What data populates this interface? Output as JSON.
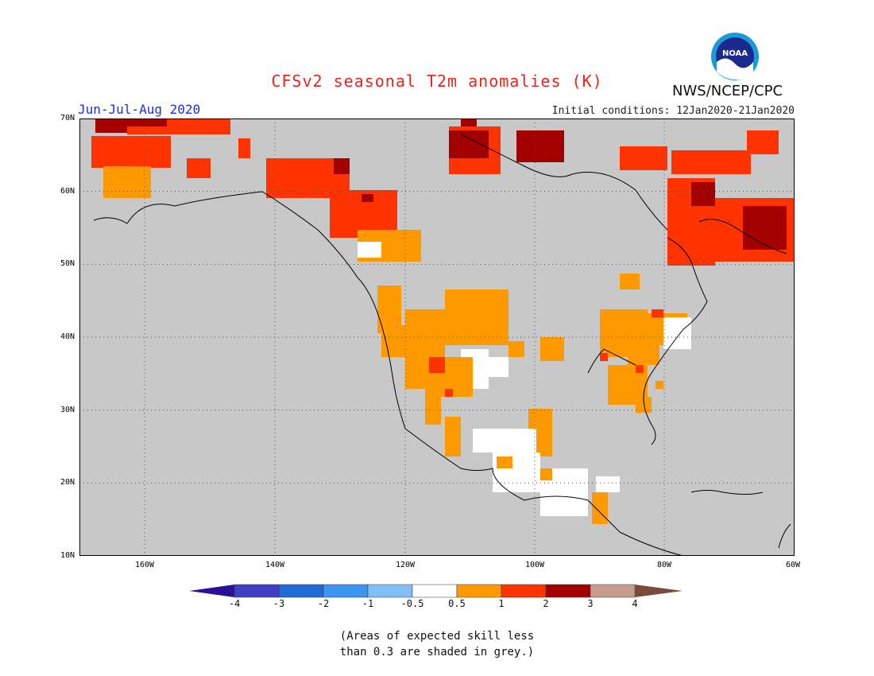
{
  "title": "CFSv2 seasonal T2m anomalies (K)",
  "season": "Jun-Jul-Aug 2020",
  "initial_conditions": "Initial conditions: 12Jan2020-21Jan2020",
  "agency": "NWS/NCEP/CPC",
  "logo_text": "NOAA",
  "lat_labels": [
    "70N",
    "60N",
    "50N",
    "40N",
    "30N",
    "20N",
    "10N"
  ],
  "lon_labels": [
    "160W",
    "140W",
    "120W",
    "100W",
    "80W",
    "60W"
  ],
  "colorbar": {
    "labels": [
      "-4",
      "-3",
      "-2",
      "-1",
      "-0.5",
      "0.5",
      "1",
      "2",
      "3",
      "4"
    ],
    "colors": [
      "#2b0f99",
      "#3f3fc6",
      "#1e6ad6",
      "#3c96f0",
      "#82bff5",
      "#ffffff",
      "#ff9900",
      "#ff3300",
      "#a30000",
      "#c69c8a",
      "#7a4a3a"
    ]
  },
  "note_line1": "(Areas of expected skill less",
  "note_line2": "than 0.3 are shaded in grey.)",
  "colors": {
    "grey": "#c8c8c8",
    "white": "#ffffff",
    "orange": "#ff9900",
    "red": "#ff3300",
    "darkred": "#a30000"
  }
}
